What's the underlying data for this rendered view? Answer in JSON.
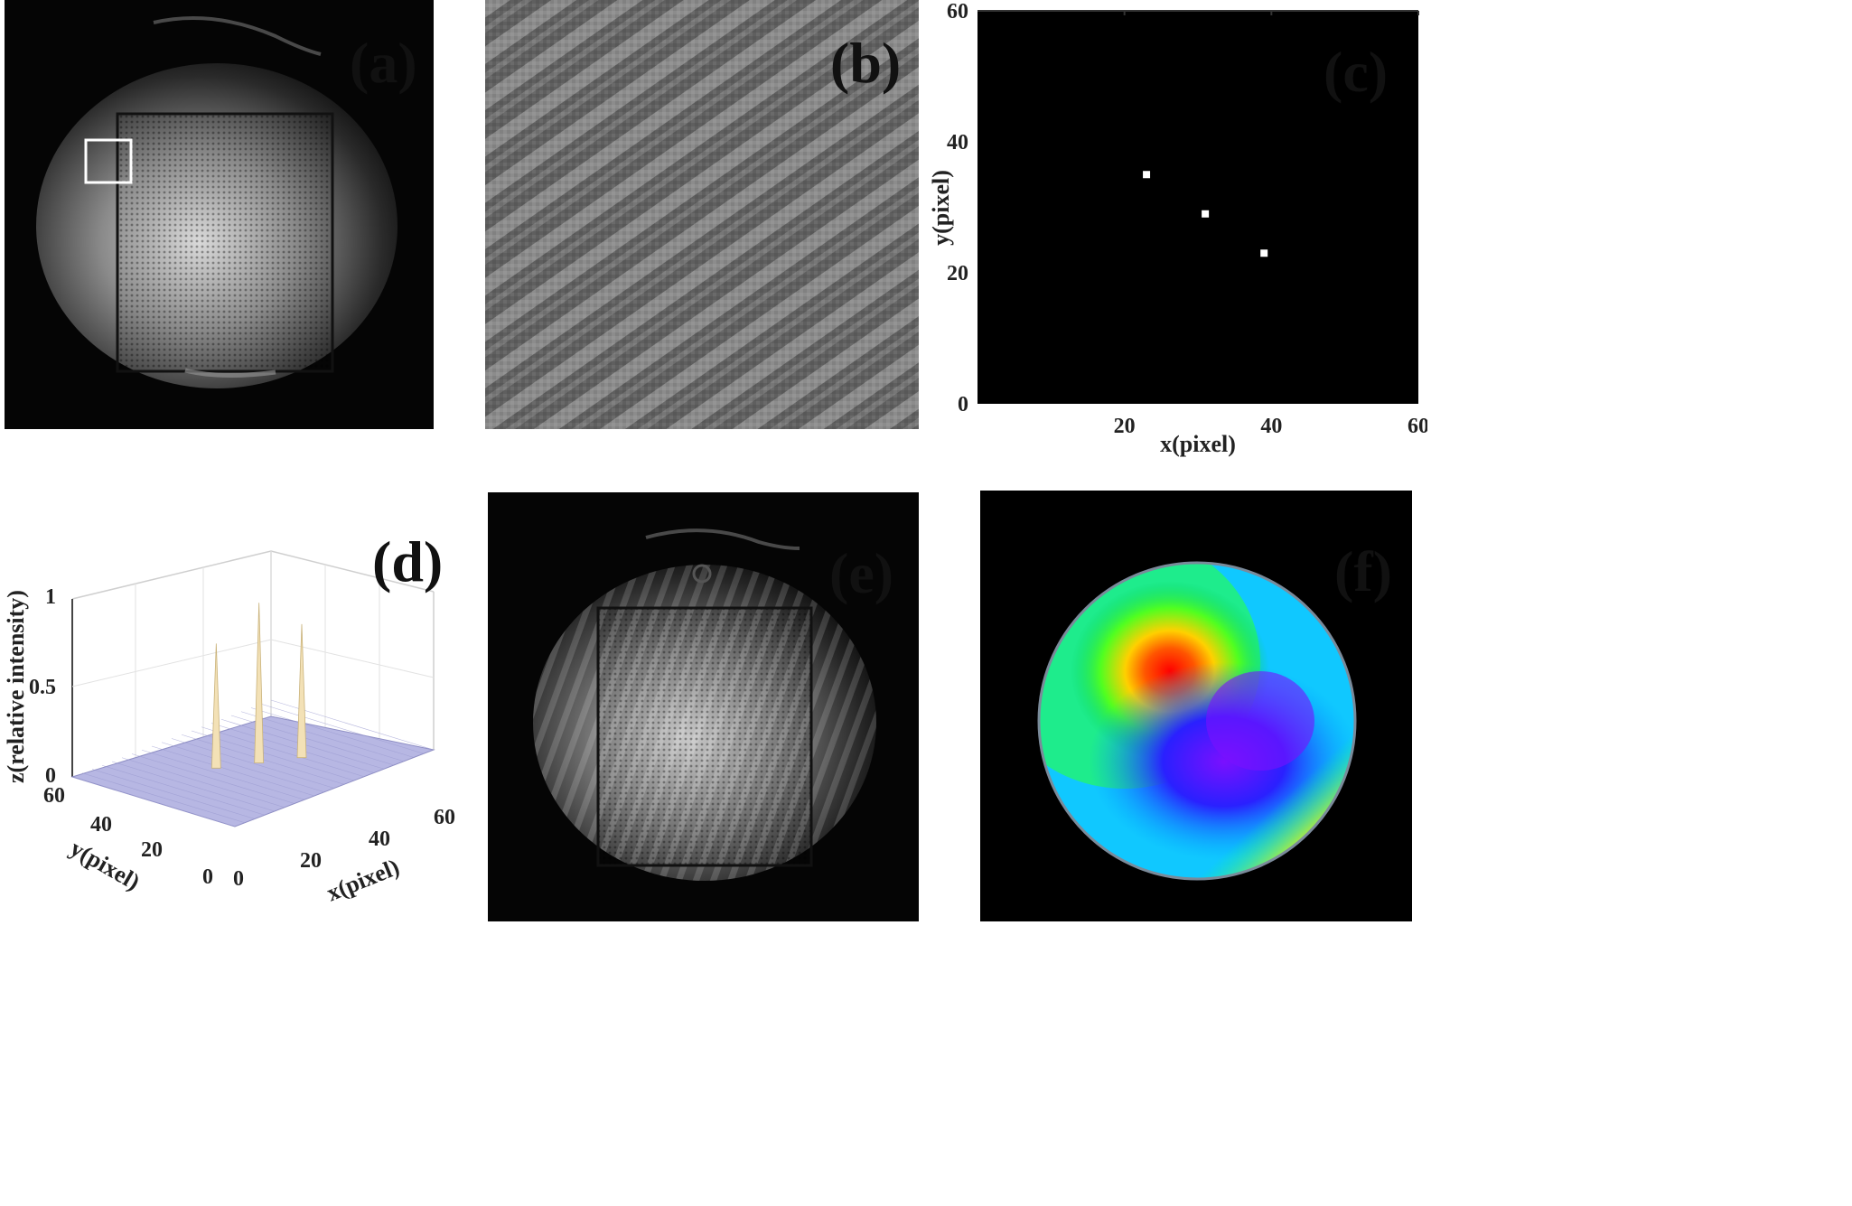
{
  "figure": {
    "panels": [
      {
        "id": "a",
        "label": "(a)"
      },
      {
        "id": "b",
        "label": "(b)"
      },
      {
        "id": "c",
        "label": "(c)"
      },
      {
        "id": "d",
        "label": "(d)"
      },
      {
        "id": "e",
        "label": "(e)"
      },
      {
        "id": "f",
        "label": "(f)"
      }
    ]
  },
  "chart_data": [
    {
      "panel": "c",
      "type": "scatter",
      "xlabel": "x(pixel)",
      "ylabel": "y(pixel)",
      "xlim": [
        0,
        60
      ],
      "ylim": [
        0,
        60
      ],
      "xticks": [
        20,
        40,
        60
      ],
      "yticks": [
        0,
        20,
        40,
        60
      ],
      "background": "#000000",
      "point_color": "#ffffff",
      "points": [
        {
          "x": 23,
          "y": 35
        },
        {
          "x": 31,
          "y": 29
        },
        {
          "x": 39,
          "y": 23
        }
      ]
    },
    {
      "panel": "d",
      "type": "surface3d",
      "xlabel": "x(pixel)",
      "ylabel": "y(pixel)",
      "zlabel": "z(relative intensity)",
      "xticks": [
        0,
        20,
        40,
        60
      ],
      "yticks": [
        0,
        20,
        40,
        60
      ],
      "zticks": [
        0,
        0.5,
        1
      ],
      "peaks": [
        {
          "x": 23,
          "y": 35,
          "z": 0.7
        },
        {
          "x": 31,
          "y": 29,
          "z": 0.9
        },
        {
          "x": 39,
          "y": 23,
          "z": 0.75
        }
      ],
      "surface_color": "#b7b7e3",
      "peak_color": "#f3e1b6"
    }
  ]
}
